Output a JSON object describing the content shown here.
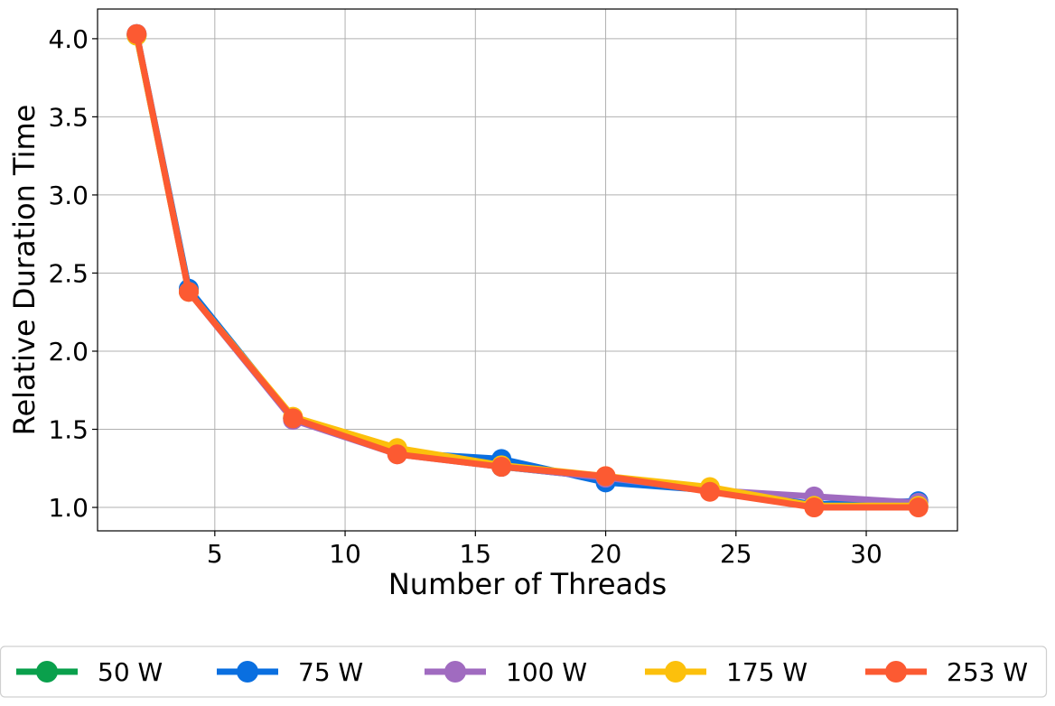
{
  "chart_data": {
    "type": "line",
    "title": "",
    "xlabel": "Number of Threads",
    "ylabel": "Relative Duration Time",
    "xlim": [
      0.5,
      33.5
    ],
    "ylim": [
      0.85,
      4.19
    ],
    "x_ticks": [
      5,
      10,
      15,
      20,
      25,
      30
    ],
    "y_ticks": [
      1.0,
      1.5,
      2.0,
      2.5,
      3.0,
      3.5,
      4.0
    ],
    "y_tick_labels": [
      "1.0",
      "1.5",
      "2.0",
      "2.5",
      "3.0",
      "3.5",
      "4.0"
    ],
    "grid": true,
    "legend_position": "bottom",
    "x": [
      2,
      4,
      8,
      12,
      16,
      20,
      24,
      28,
      32
    ],
    "series": [
      {
        "name": "50 W",
        "color": "#0aa04c",
        "values": [
          4.02,
          2.39,
          1.57,
          1.35,
          1.26,
          1.19,
          1.11,
          1.01,
          1.01
        ]
      },
      {
        "name": "75 W",
        "color": "#0a6fe0",
        "values": [
          4.03,
          2.4,
          1.57,
          1.35,
          1.31,
          1.16,
          1.11,
          1.02,
          1.04
        ]
      },
      {
        "name": "100 W",
        "color": "#a06bc0",
        "values": [
          4.03,
          2.38,
          1.56,
          1.34,
          1.26,
          1.19,
          1.11,
          1.07,
          1.03
        ]
      },
      {
        "name": "175 W",
        "color": "#fcc00c",
        "values": [
          4.02,
          2.38,
          1.58,
          1.38,
          1.27,
          1.2,
          1.13,
          1.01,
          1.01
        ]
      },
      {
        "name": "253 W",
        "color": "#fc5a32",
        "values": [
          4.03,
          2.38,
          1.57,
          1.34,
          1.26,
          1.2,
          1.1,
          1.0,
          1.0
        ]
      }
    ]
  }
}
